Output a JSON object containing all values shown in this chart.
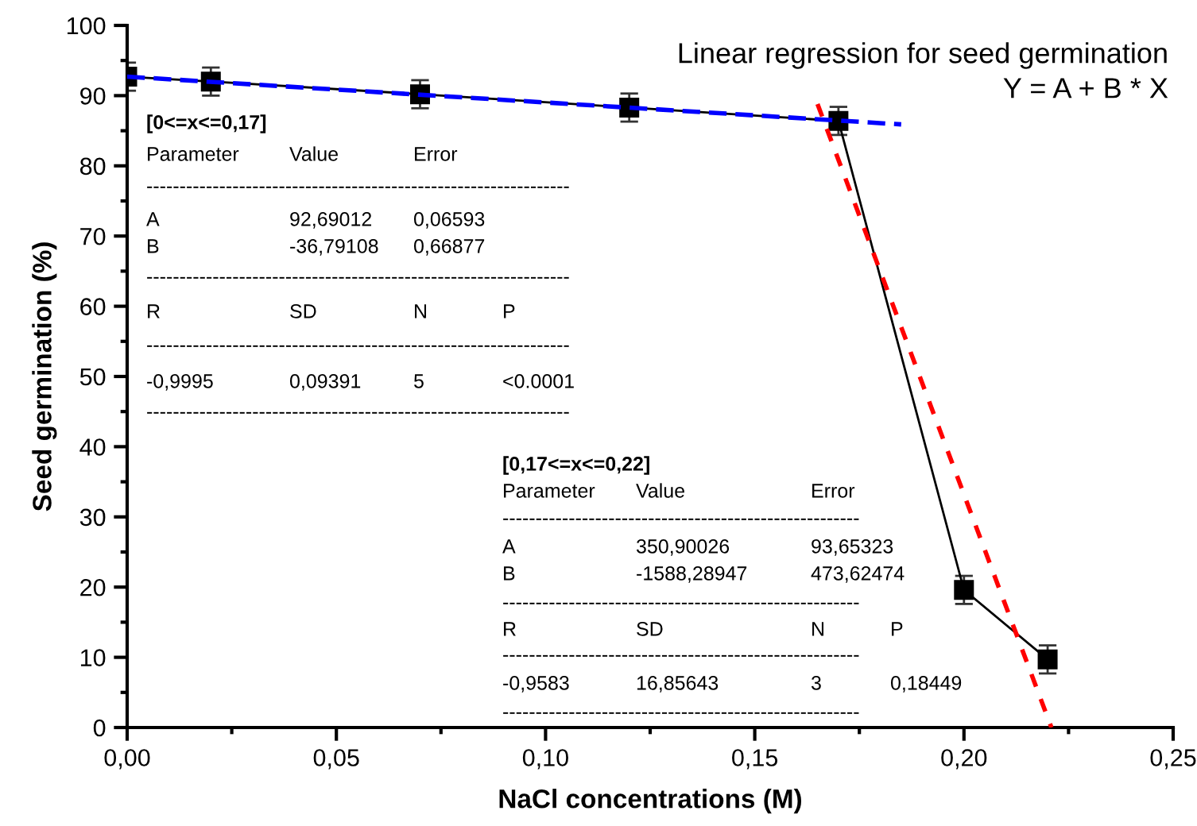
{
  "chart_data": {
    "type": "line",
    "xlabel": "NaCl concentrations (M)",
    "ylabel": "Seed germination (%)",
    "xlim": [
      0,
      0.25
    ],
    "ylim": [
      0,
      100
    ],
    "xticks": [
      {
        "value": 0,
        "label": "0,00"
      },
      {
        "value": 0.05,
        "label": "0,05"
      },
      {
        "value": 0.1,
        "label": "0,10"
      },
      {
        "value": 0.15,
        "label": "0,15"
      },
      {
        "value": 0.2,
        "label": "0,20"
      },
      {
        "value": 0.25,
        "label": "0,25"
      }
    ],
    "yticks": [
      0,
      10,
      20,
      30,
      40,
      50,
      60,
      70,
      80,
      90,
      100
    ],
    "grid": false,
    "legend": false,
    "series": [
      {
        "color": "#000000",
        "marker": "square",
        "line_style": "solid",
        "x": [
          0,
          0.02,
          0.07,
          0.12,
          0.17,
          0.2,
          0.22
        ],
        "values": [
          92.7,
          92.0,
          90.2,
          88.3,
          86.4,
          19.6,
          9.7
        ],
        "errors": [
          2,
          2,
          2,
          2,
          2,
          2,
          2
        ]
      },
      {
        "color": "#0000ff",
        "marker": "none",
        "line_style": "dashed",
        "x": [
          0,
          0.185
        ],
        "values": [
          92.7,
          85.9
        ]
      },
      {
        "color": "#ff0000",
        "marker": "none",
        "line_style": "dotted",
        "x": [
          0.165,
          0.2209
        ],
        "values": [
          88.8,
          0
        ]
      }
    ],
    "annotations": [
      "Linear regression for seed germination",
      "Y = A + B * X",
      "[0<=x<=0,17]\nParameter\tValue\tError\n----------------------------------------------------------------\nA\t92,69012\t0,06593\nB\t-36,79108\t0,66877\n----------------------------------------------------------------\nR\tSD\tN\tP\n----------------------------------------------------------------\n-0,9995\t0,09391\t5\t<0.0001\n----------------------------------------------------------------",
      "[0,17<=x<=0,22]\nParameter\tValue\tError\n------------------------------------------------------\nA\t350,90026\t93,65323\nB\t-1588,28947\t473,62474\n------------------------------------------------------\nR\tSD\tN\tP\n------------------------------------------------------\n-0,9583\t16,85643\t3\t0,18449\n------------------------------------------------------"
    ]
  }
}
